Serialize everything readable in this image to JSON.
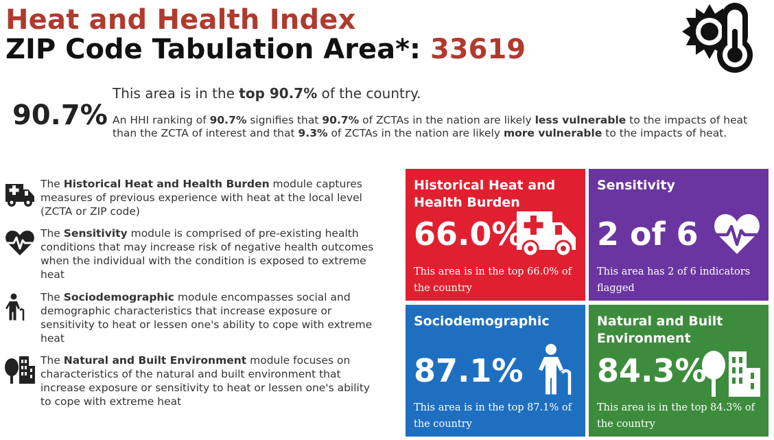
{
  "header": {
    "title": "Heat and Health Index",
    "subtitle_prefix": "ZIP Code Tabulation Area*: ",
    "zip": "33619"
  },
  "logo_icon": "sun-thermometer-icon",
  "summary": {
    "percentile": "90.7%",
    "headline": {
      "pre": "This area is in the ",
      "bold": "top 90.7%",
      "post": " of the country."
    },
    "explain": {
      "t1": "An HHI ranking of ",
      "b1": "90.7%",
      "t2": " signifies that ",
      "b2": "90.7%",
      "t3": " of ZCTAs in the nation are likely ",
      "b3": "less vulnerable",
      "t4": " to the impacts of heat than the ZCTA of interest and that ",
      "b4": "9.3%",
      "t5": " of ZCTAs in the nation are likely ",
      "b5": "more vulnerable",
      "t6": " to the impacts of heat."
    }
  },
  "modules": [
    {
      "icon": "ambulance-icon",
      "pre": "The ",
      "name": "Historical Heat and Health Burden",
      "text": " module captures measures of previous experience with heat at the local level (ZCTA or ZIP code)"
    },
    {
      "icon": "heartbeat-icon",
      "pre": "The ",
      "name": "Sensitivity",
      "text": " module is comprised of pre-existing health conditions that may increase risk of negative health outcomes when the individual with the condition is exposed to extreme heat"
    },
    {
      "icon": "person-cane-icon",
      "pre": "The ",
      "name": "Sociodemographic",
      "text": " module encompasses social and demographic characteristics that increase exposure or sensitivity to heat or lessen one's ability to cope with extreme heat"
    },
    {
      "icon": "tree-building-icon",
      "pre": "The ",
      "name": "Natural and Built Environment",
      "text": " module focuses on characteristics of the natural and built environment that increase exposure or sensitivity to heat or lessen one's ability to cope with extreme heat"
    }
  ],
  "tiles": [
    {
      "title": "Historical Heat and Health Burden",
      "value": "66.0%",
      "desc": "This area is in the top 66.0% of the country",
      "icon": "ambulance-icon",
      "color": "#e02030"
    },
    {
      "title": "Sensitivity",
      "value": "2 of 6",
      "desc": "This area has 2 of 6 indicators flagged",
      "icon": "heartbeat-icon",
      "color": "#6a35a0"
    },
    {
      "title": "Sociodemographic",
      "value": "87.1%",
      "desc": "This area is in the top 87.1% of the country",
      "icon": "person-cane-icon",
      "color": "#1f6fc0"
    },
    {
      "title": "Natural and Built Environment",
      "value": "84.3%",
      "desc": "This area is in the top 84.3% of the country",
      "icon": "tree-building-icon",
      "color": "#3d8c3d"
    }
  ],
  "colors": {
    "accent": "#b03a2e",
    "text": "#222222"
  }
}
